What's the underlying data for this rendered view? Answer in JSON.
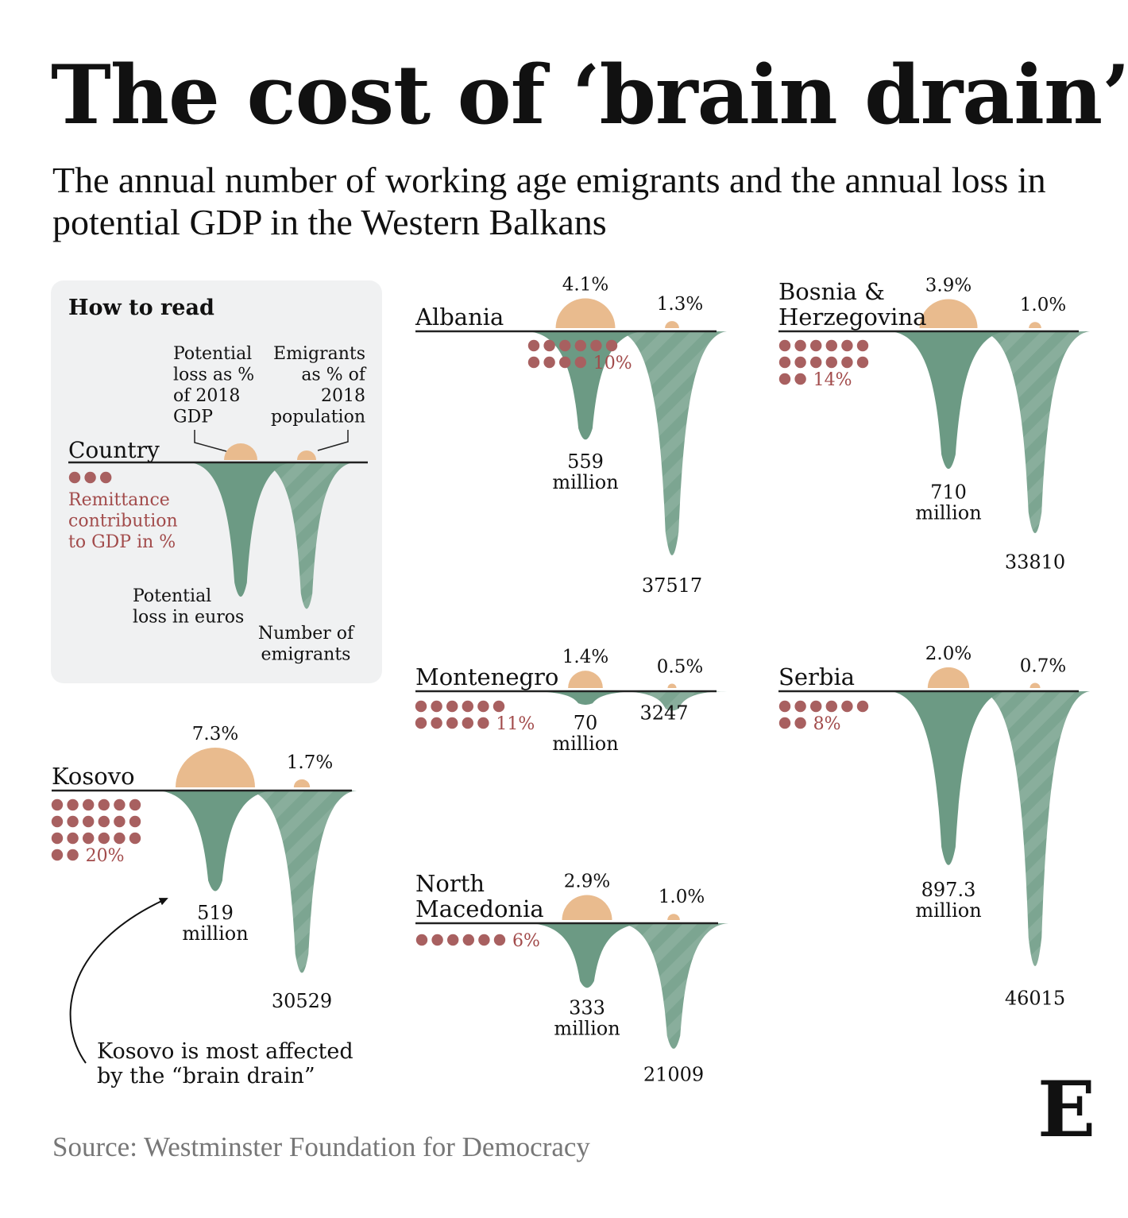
{
  "title": "The cost of ‘brain drain’",
  "subtitle": "The annual number of working age emigrants and the annual loss in potential GDP in the Western Balkans",
  "source": "Source: Westminster Foundation for Democracy",
  "brand_mark": "E",
  "colors": {
    "gdp_semicircle": "#e9bb8e",
    "loss_fill": "#6c9a84",
    "emigrant_fill": "#7ca591",
    "remittance_dot": "#a86060",
    "remittance_text": "#a24b4b",
    "legend_background": "#f0f1f2"
  },
  "legend": {
    "heading": "How to read",
    "country": "Country",
    "gdp_pct_label": [
      "Potential",
      "loss as %",
      "of 2018",
      "GDP"
    ],
    "emigrant_pct_label": [
      "Emigrants",
      "as % of",
      "2018",
      "population"
    ],
    "remittance_label": [
      "Remittance",
      "contribution",
      "to GDP in %"
    ],
    "loss_label": [
      "Potential",
      "loss in euros"
    ],
    "emigrants_label": [
      "Number of",
      "emigrants"
    ]
  },
  "annotation": [
    "Kosovo is most affected",
    "by the “brain drain”"
  ],
  "chart_data": {
    "type": "custom-glyph",
    "fields": {
      "gdp_loss_pct": "Potential loss as % of 2018 GDP",
      "emigrants_pct": "Emigrants as % of 2018 population",
      "remittance_pct": "Remittance contribution to GDP in %",
      "loss_eur_million": "Potential loss in euros",
      "emigrants": "Number of emigrants"
    },
    "countries": [
      {
        "name": [
          "Albania"
        ],
        "gdp_loss_pct": 4.1,
        "gdp_label": "4.1%",
        "emigrants_pct": 1.3,
        "emig_pct_label": "1.3%",
        "remittance_pct": 10,
        "remittance_label": "10%",
        "loss_eur_million": 559,
        "loss_label": [
          "559",
          "million"
        ],
        "emigrants": 37517,
        "emigrants_label": "37517"
      },
      {
        "name": [
          "Bosnia &",
          "Herzegovina"
        ],
        "gdp_loss_pct": 3.9,
        "gdp_label": "3.9%",
        "emigrants_pct": 1.0,
        "emig_pct_label": "1.0%",
        "remittance_pct": 14,
        "remittance_label": "14%",
        "loss_eur_million": 710,
        "loss_label": [
          "710",
          "million"
        ],
        "emigrants": 33810,
        "emigrants_label": "33810"
      },
      {
        "name": [
          "Montenegro"
        ],
        "gdp_loss_pct": 1.4,
        "gdp_label": "1.4%",
        "emigrants_pct": 0.5,
        "emig_pct_label": "0.5%",
        "remittance_pct": 11,
        "remittance_label": "11%",
        "loss_eur_million": 70,
        "loss_label": [
          "70",
          "million"
        ],
        "emigrants": 3247,
        "emigrants_label": "3247"
      },
      {
        "name": [
          "Serbia"
        ],
        "gdp_loss_pct": 2.0,
        "gdp_label": "2.0%",
        "emigrants_pct": 0.7,
        "emig_pct_label": "0.7%",
        "remittance_pct": 8,
        "remittance_label": "8%",
        "loss_eur_million": 897.3,
        "loss_label": [
          "897.3",
          "million"
        ],
        "emigrants": 46015,
        "emigrants_label": "46015"
      },
      {
        "name": [
          "Kosovo"
        ],
        "gdp_loss_pct": 7.3,
        "gdp_label": "7.3%",
        "emigrants_pct": 1.7,
        "emig_pct_label": "1.7%",
        "remittance_pct": 20,
        "remittance_label": "20%",
        "loss_eur_million": 519,
        "loss_label": [
          "519",
          "million"
        ],
        "emigrants": 30529,
        "emigrants_label": "30529"
      },
      {
        "name": [
          "North",
          "Macedonia"
        ],
        "gdp_loss_pct": 2.9,
        "gdp_label": "2.9%",
        "emigrants_pct": 1.0,
        "emig_pct_label": "1.0%",
        "remittance_pct": 6,
        "remittance_label": "6%",
        "loss_eur_million": 333,
        "loss_label": [
          "333",
          "million"
        ],
        "emigrants": 21009,
        "emigrants_label": "21009"
      }
    ]
  }
}
